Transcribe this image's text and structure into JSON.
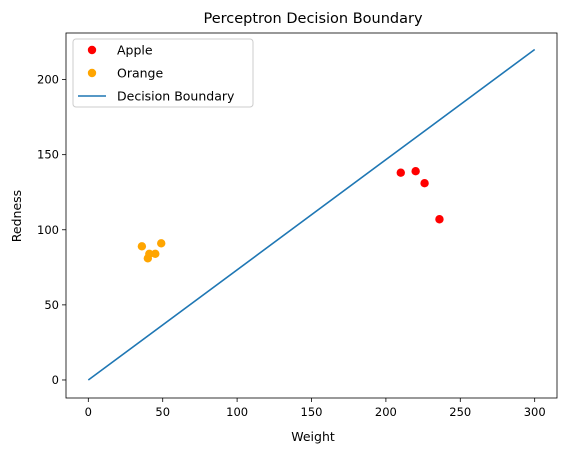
{
  "chart_data": {
    "type": "scatter",
    "title": "Perceptron Decision Boundary",
    "xlabel": "Weight",
    "ylabel": "Redness",
    "xlim": [
      -15,
      315
    ],
    "ylim": [
      -12,
      231
    ],
    "xticks": [
      0,
      50,
      100,
      150,
      200,
      250,
      300
    ],
    "yticks": [
      0,
      50,
      100,
      150,
      200
    ],
    "grid": false,
    "legend_position": "top-left",
    "series": [
      {
        "name": "Apple",
        "kind": "scatter",
        "color": "#ff0000",
        "points": [
          {
            "x": 210,
            "y": 138
          },
          {
            "x": 220,
            "y": 139
          },
          {
            "x": 226,
            "y": 131
          },
          {
            "x": 236,
            "y": 107
          }
        ]
      },
      {
        "name": "Orange",
        "kind": "scatter",
        "color": "#ffa500",
        "points": [
          {
            "x": 36,
            "y": 89
          },
          {
            "x": 40,
            "y": 81
          },
          {
            "x": 41,
            "y": 84
          },
          {
            "x": 45,
            "y": 84
          },
          {
            "x": 49,
            "y": 91
          }
        ]
      },
      {
        "name": "Decision Boundary",
        "kind": "line",
        "color": "#1f77b4",
        "points": [
          {
            "x": 0,
            "y": 0
          },
          {
            "x": 300,
            "y": 220
          }
        ]
      }
    ]
  }
}
